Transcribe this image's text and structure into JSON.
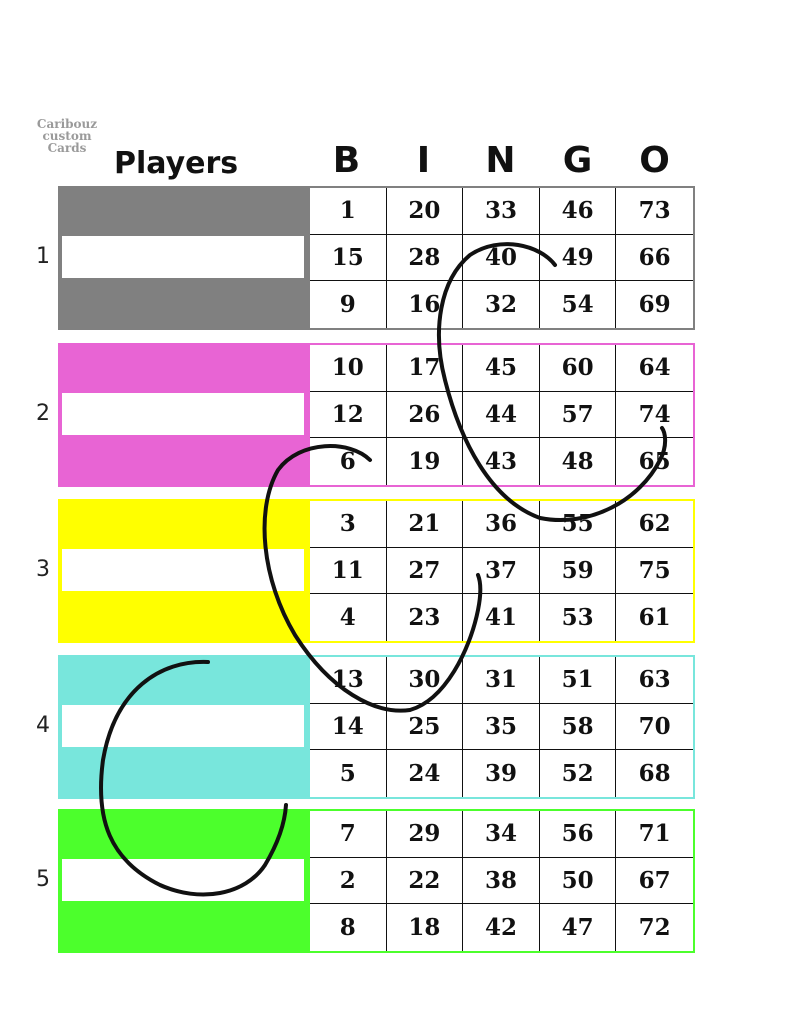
{
  "logo": {
    "line1": "Caribouz",
    "line2": "custom",
    "line3": "Cards"
  },
  "header": {
    "players": "Players",
    "letters": [
      "B",
      "I",
      "N",
      "G",
      "O"
    ]
  },
  "cards": [
    {
      "number": "1",
      "color": "#808080",
      "rows": [
        [
          "1",
          "20",
          "33",
          "46",
          "73"
        ],
        [
          "15",
          "28",
          "40",
          "49",
          "66"
        ],
        [
          "9",
          "16",
          "32",
          "54",
          "69"
        ]
      ]
    },
    {
      "number": "2",
      "color": "#e864d4",
      "rows": [
        [
          "10",
          "17",
          "45",
          "60",
          "64"
        ],
        [
          "12",
          "26",
          "44",
          "57",
          "74"
        ],
        [
          "6",
          "19",
          "43",
          "48",
          "65"
        ]
      ]
    },
    {
      "number": "3",
      "color": "#ffff00",
      "rows": [
        [
          "3",
          "21",
          "36",
          "55",
          "62"
        ],
        [
          "11",
          "27",
          "37",
          "59",
          "75"
        ],
        [
          "4",
          "23",
          "41",
          "53",
          "61"
        ]
      ]
    },
    {
      "number": "4",
      "color": "#78e6dc",
      "rows": [
        [
          "13",
          "30",
          "31",
          "51",
          "63"
        ],
        [
          "14",
          "25",
          "35",
          "58",
          "70"
        ],
        [
          "5",
          "24",
          "39",
          "52",
          "68"
        ]
      ]
    },
    {
      "number": "5",
      "color": "#4cff2c",
      "rows": [
        [
          "7",
          "29",
          "34",
          "56",
          "71"
        ],
        [
          "2",
          "22",
          "38",
          "50",
          "67"
        ],
        [
          "8",
          "18",
          "42",
          "47",
          "72"
        ]
      ]
    }
  ]
}
